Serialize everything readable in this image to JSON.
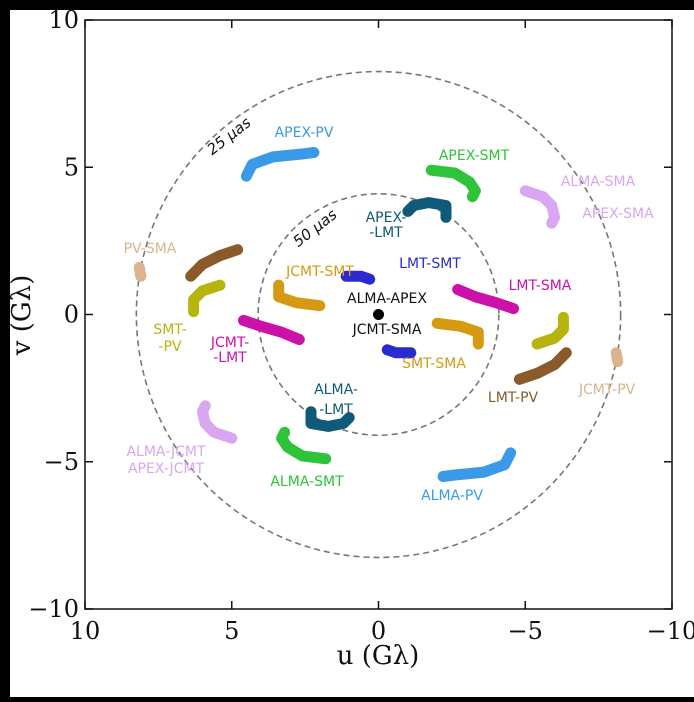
{
  "chart_data": {
    "type": "scatter",
    "title": "",
    "xlabel": "u (Gλ)",
    "ylabel": "v (Gλ)",
    "xlim": [
      10,
      -10
    ],
    "ylim": [
      -10,
      10
    ],
    "x_ticks": [
      10,
      5,
      0,
      -5,
      -10
    ],
    "y_ticks": [
      10,
      5,
      0,
      -5,
      -10
    ],
    "x_tick_labels": [
      "10",
      "5",
      "0",
      "−5",
      "−10"
    ],
    "y_tick_labels": [
      "10",
      "5",
      "0",
      "−5",
      "−10"
    ],
    "grid": false,
    "legend": "none",
    "rings": [
      {
        "radius": 8.25,
        "label": "25 μas"
      },
      {
        "radius": 4.1,
        "label": "50 μas"
      }
    ],
    "origin_point": {
      "label": "ALMA-APEX",
      "u": 0,
      "v": 0
    },
    "series": [
      {
        "name": "APEX-PV",
        "color": "#3a9ae8",
        "points": [
          [
            4.5,
            4.7
          ],
          [
            4.3,
            5.1
          ],
          [
            3.6,
            5.35
          ],
          [
            2.6,
            5.45
          ],
          [
            2.2,
            5.5
          ]
        ]
      },
      {
        "name": "ALMA-PV",
        "color": "#3a9ae8",
        "points": [
          [
            -4.5,
            -4.7
          ],
          [
            -4.3,
            -5.1
          ],
          [
            -3.6,
            -5.35
          ],
          [
            -2.6,
            -5.45
          ],
          [
            -2.2,
            -5.5
          ]
        ]
      },
      {
        "name": "APEX-SMT",
        "color": "#2ec43a",
        "points": [
          [
            -1.8,
            4.9
          ],
          [
            -2.6,
            4.8
          ],
          [
            -3.1,
            4.5
          ],
          [
            -3.3,
            4.2
          ],
          [
            -3.2,
            4.0
          ]
        ]
      },
      {
        "name": "ALMA-SMT",
        "color": "#2ec43a",
        "points": [
          [
            1.8,
            -4.9
          ],
          [
            2.6,
            -4.8
          ],
          [
            3.1,
            -4.5
          ],
          [
            3.3,
            -4.2
          ],
          [
            3.2,
            -4.0
          ]
        ]
      },
      {
        "name": "ALMA-SMA",
        "color": "#d9a6f2",
        "points": [
          [
            -5.0,
            4.2
          ],
          [
            -5.6,
            4.0
          ],
          [
            -5.9,
            3.7
          ],
          [
            -6.0,
            3.3
          ],
          [
            -5.9,
            3.1
          ]
        ]
      },
      {
        "name": "ALMA-JCMT",
        "color": "#d9a6f2",
        "points": [
          [
            5.0,
            -4.2
          ],
          [
            5.6,
            -4.0
          ],
          [
            5.9,
            -3.7
          ],
          [
            6.0,
            -3.3
          ],
          [
            5.9,
            -3.1
          ]
        ]
      },
      {
        "name": "APEX-LMT",
        "color": "#0e5a78",
        "points": [
          [
            -2.3,
            3.3
          ],
          [
            -2.3,
            3.7
          ],
          [
            -1.7,
            3.8
          ],
          [
            -1.2,
            3.7
          ],
          [
            -1.0,
            3.5
          ]
        ]
      },
      {
        "name": "ALMA-LMT",
        "color": "#0e5a78",
        "points": [
          [
            2.3,
            -3.3
          ],
          [
            2.3,
            -3.7
          ],
          [
            1.7,
            -3.8
          ],
          [
            1.2,
            -3.7
          ],
          [
            1.0,
            -3.5
          ]
        ]
      },
      {
        "name": "PV-SMA",
        "color": "#d9b48f",
        "points": [
          [
            8.15,
            1.6
          ],
          [
            8.1,
            1.3
          ]
        ]
      },
      {
        "name": "JCMT-PV",
        "color": "#d9b48f",
        "points": [
          [
            -8.15,
            -1.6
          ],
          [
            -8.1,
            -1.3
          ]
        ]
      },
      {
        "name": "SMT-SMA_a",
        "color": "#8b5a2b",
        "points": [
          [
            6.4,
            1.3
          ],
          [
            6.0,
            1.7
          ],
          [
            5.4,
            2.0
          ],
          [
            4.8,
            2.2
          ]
        ]
      },
      {
        "name": "SMT-SMA_b",
        "color": "#8b5a2b",
        "points": [
          [
            -6.4,
            -1.3
          ],
          [
            -6.0,
            -1.7
          ],
          [
            -5.4,
            -2.0
          ],
          [
            -4.8,
            -2.2
          ]
        ]
      },
      {
        "name": "SMT-PV",
        "color": "#b5b50e",
        "points": [
          [
            6.3,
            0.1
          ],
          [
            6.3,
            0.5
          ],
          [
            6.0,
            0.8
          ],
          [
            5.4,
            1.0
          ]
        ]
      },
      {
        "name": "SMT-PV_b",
        "color": "#b5b50e",
        "points": [
          [
            -6.3,
            -0.1
          ],
          [
            -6.3,
            -0.5
          ],
          [
            -6.0,
            -0.8
          ],
          [
            -5.4,
            -1.0
          ]
        ]
      },
      {
        "name": "JCMT-LMT",
        "color": "#cc11aa",
        "points": [
          [
            4.6,
            -0.2
          ],
          [
            4.0,
            -0.4
          ],
          [
            3.3,
            -0.6
          ],
          [
            2.7,
            -0.85
          ]
        ]
      },
      {
        "name": "LMT-SMA",
        "color": "#cc11aa",
        "points": [
          [
            -2.7,
            0.85
          ],
          [
            -3.3,
            0.6
          ],
          [
            -4.0,
            0.4
          ],
          [
            -4.6,
            0.2
          ]
        ]
      },
      {
        "name": "JCMT-SMT",
        "color": "#d69a12",
        "points": [
          [
            3.4,
            1.0
          ],
          [
            3.4,
            0.6
          ],
          [
            2.8,
            0.4
          ],
          [
            2.0,
            0.3
          ]
        ]
      },
      {
        "name": "SMT-SMA",
        "color": "#d69a12",
        "points": [
          [
            -2.0,
            -0.3
          ],
          [
            -2.8,
            -0.4
          ],
          [
            -3.4,
            -0.6
          ],
          [
            -3.4,
            -1.0
          ]
        ]
      },
      {
        "name": "LMT-SMT",
        "color": "#2a2ad0",
        "points": [
          [
            1.1,
            1.3
          ],
          [
            0.6,
            1.3
          ],
          [
            0.3,
            1.2
          ]
        ]
      },
      {
        "name": "JCMT-SMA",
        "color": "#2a2ad0",
        "points": [
          [
            -1.1,
            -1.3
          ],
          [
            -0.6,
            -1.3
          ],
          [
            -0.3,
            -1.2
          ]
        ]
      }
    ],
    "labels": [
      {
        "text": "APEX-PV",
        "color": "#3a9ae8"
      },
      {
        "text": "APEX-SMT",
        "color": "#2ec43a"
      },
      {
        "text": "ALMA-SMA",
        "color": "#d9a6f2"
      },
      {
        "text": "APEX-SMA",
        "color": "#d9a6f2"
      },
      {
        "text": "APEX-",
        "color": "#0e5a78"
      },
      {
        "text": "-LMT",
        "color": "#0e5a78"
      },
      {
        "text": "PV-SMA",
        "color": "#d9b48f"
      },
      {
        "text": "JCMT-SMT",
        "color": "#d69a12"
      },
      {
        "text": "LMT-SMT",
        "color": "#2a2ad0"
      },
      {
        "text": "LMT-SMA",
        "color": "#cc11aa"
      },
      {
        "text": "SMT-",
        "color": "#b5b50e"
      },
      {
        "text": "-PV",
        "color": "#b5b50e"
      },
      {
        "text": "JCMT-",
        "color": "#cc11aa"
      },
      {
        "text": "-LMT",
        "color": "#cc11aa"
      },
      {
        "text": "JCMT-SMA",
        "color": "#111111"
      },
      {
        "text": "SMT-SMA",
        "color": "#d69a12"
      },
      {
        "text": "LMT-PV",
        "color": "#8b5a2b"
      },
      {
        "text": "JCMT-PV",
        "color": "#d9b48f"
      },
      {
        "text": "ALMA-",
        "color": "#0e5a78"
      },
      {
        "text": "-LMT",
        "color": "#0e5a78"
      },
      {
        "text": "ALMA-JCMT",
        "color": "#d9a6f2"
      },
      {
        "text": "APEX-JCMT",
        "color": "#d9a6f2"
      },
      {
        "text": "ALMA-SMT",
        "color": "#2ec43a"
      },
      {
        "text": "ALMA-PV",
        "color": "#3a9ae8"
      },
      {
        "text": "ALMA-APEX",
        "color": "#111111"
      }
    ]
  }
}
